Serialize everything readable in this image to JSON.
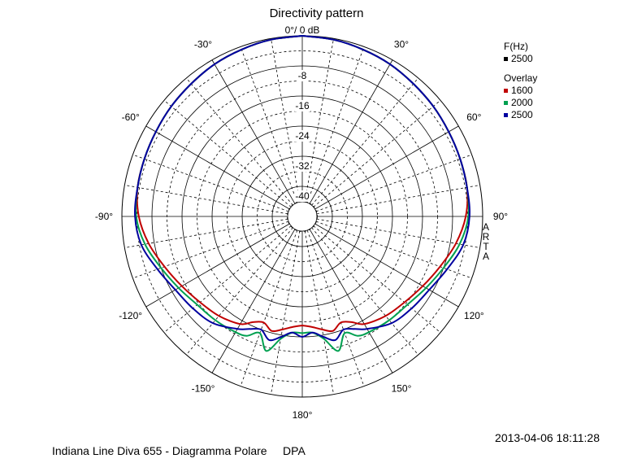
{
  "title": "Directivity pattern",
  "footer": {
    "left": "Indiana Line Diva 655 - Diagramma Polare     DPA",
    "right": "2013-04-06  18:11:28"
  },
  "brand": [
    "A",
    "R",
    "T",
    "A"
  ],
  "legend": {
    "heading": "F(Hz)",
    "current": {
      "label": "2500",
      "color": "#000000"
    },
    "overlay_heading": "Overlay",
    "overlay": [
      {
        "label": "1600",
        "color": "#c00000"
      },
      {
        "label": "2000",
        "color": "#00a050"
      },
      {
        "label": "2500",
        "color": "#0000a0"
      }
    ]
  },
  "chart_data": {
    "type": "polar",
    "title": "Directivity pattern",
    "radial_unit": "dB",
    "radial_range": [
      -48,
      0
    ],
    "radial_ticks": [
      {
        "value": 0,
        "label": "0°/ 0 dB"
      },
      {
        "value": -8,
        "label": "-8"
      },
      {
        "value": -16,
        "label": "-16"
      },
      {
        "value": -24,
        "label": "-24"
      },
      {
        "value": -32,
        "label": "-32"
      },
      {
        "value": -40,
        "label": "-40"
      }
    ],
    "angle_ticks": [
      {
        "angle": 30,
        "label": "30°"
      },
      {
        "angle": 60,
        "label": "60°"
      },
      {
        "angle": 90,
        "label": "90°"
      },
      {
        "angle": 120,
        "label": "120°"
      },
      {
        "angle": 150,
        "label": "150°"
      },
      {
        "angle": 180,
        "label": "180°"
      },
      {
        "angle": -150,
        "label": "-150°"
      },
      {
        "angle": -120,
        "label": "-120°"
      },
      {
        "angle": -90,
        "label": "-90°"
      },
      {
        "angle": -60,
        "label": "-60°"
      },
      {
        "angle": -30,
        "label": "-30°"
      }
    ],
    "angles": [
      0,
      10,
      20,
      30,
      40,
      50,
      60,
      70,
      80,
      90,
      100,
      110,
      120,
      130,
      140,
      150,
      155,
      160,
      165,
      170,
      175,
      180
    ],
    "series": [
      {
        "name": "1600",
        "color": "#c00000",
        "values": [
          0,
          -0.3,
          -0.8,
          -1.3,
          -2,
          -2.5,
          -3,
          -3.3,
          -3.5,
          -4.5,
          -6.5,
          -9,
          -11,
          -12.5,
          -13.5,
          -15,
          -17,
          -18,
          -16.5,
          -17.5,
          -18.5,
          -19
        ]
      },
      {
        "name": "2000",
        "color": "#00a050",
        "values": [
          0,
          -0.3,
          -0.8,
          -1.3,
          -2,
          -2.5,
          -3,
          -3.3,
          -3.5,
          -3.8,
          -5.5,
          -8,
          -10,
          -11.5,
          -12,
          -12.5,
          -13,
          -15,
          -11,
          -15,
          -17,
          -17
        ]
      },
      {
        "name": "2500",
        "color": "#0000a0",
        "values": [
          0,
          -0.3,
          -0.8,
          -1.3,
          -2,
          -2.5,
          -3,
          -3.3,
          -3.5,
          -3.5,
          -4.5,
          -7,
          -9,
          -10,
          -11,
          -13.5,
          -15,
          -16,
          -14,
          -15.5,
          -17,
          -16
        ]
      }
    ]
  }
}
